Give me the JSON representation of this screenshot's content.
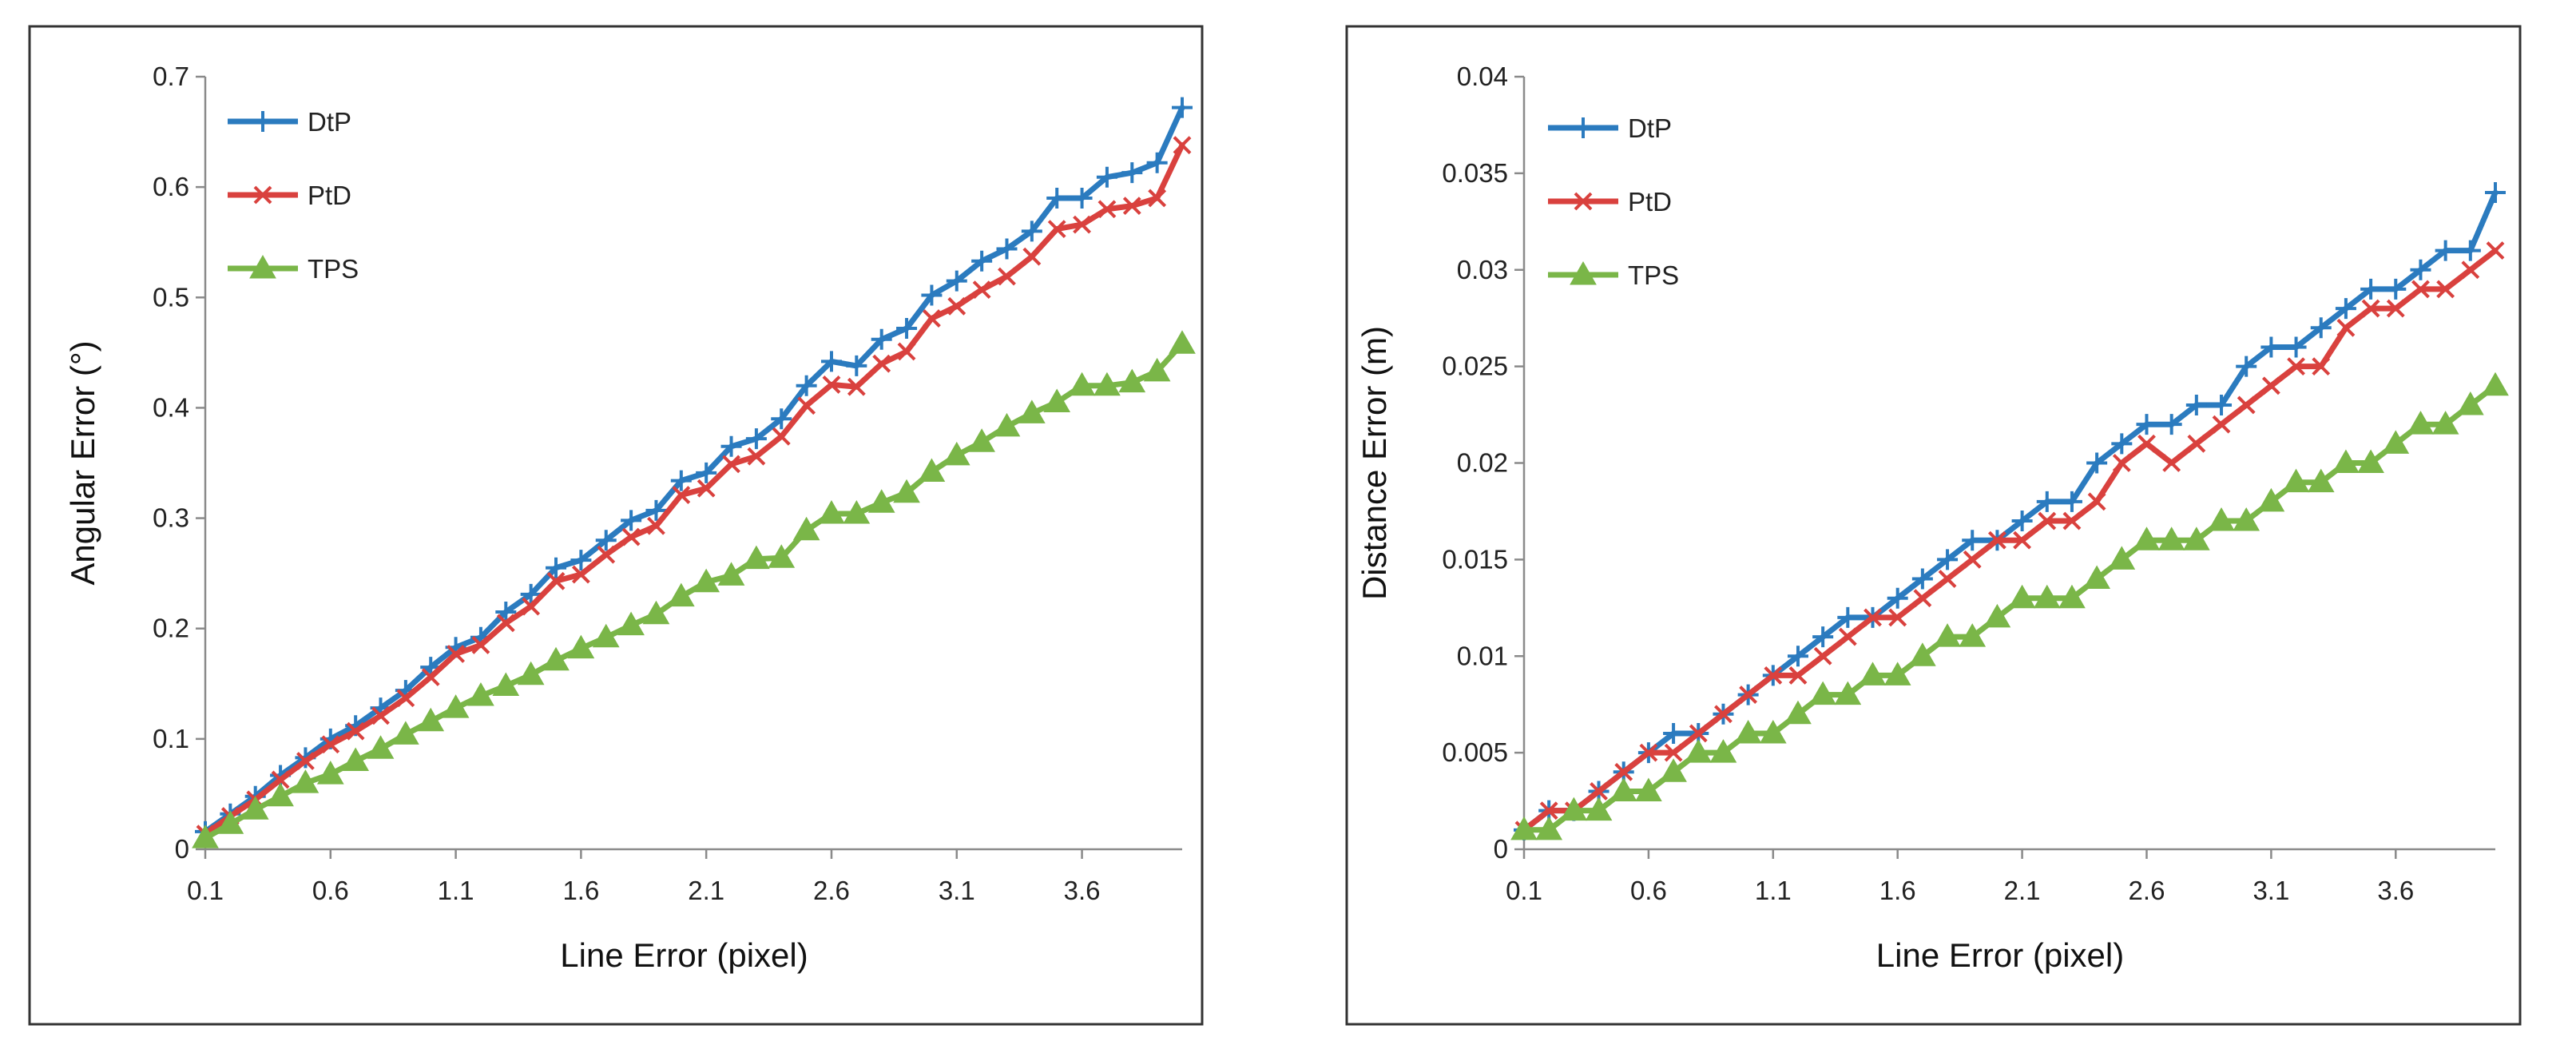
{
  "chart_data": [
    {
      "type": "line",
      "title": "",
      "xlabel": "Line Error (pixel)",
      "ylabel": "Angular Error (°)",
      "xticks": [
        "0.1",
        "0.6",
        "1.1",
        "1.6",
        "2.1",
        "2.6",
        "3.1",
        "3.6"
      ],
      "xlim": [
        0.1,
        4.0
      ],
      "ylim": [
        0,
        0.7
      ],
      "yticks": [
        0,
        0.1,
        0.2,
        0.3,
        0.4,
        0.5,
        0.6,
        0.7
      ],
      "ytick_labels": [
        "0",
        "0.1",
        "0.2",
        "0.3",
        "0.4",
        "0.5",
        "0.6",
        "0.7"
      ],
      "grid": false,
      "legend": "top-left",
      "x": [
        0.1,
        0.2,
        0.3,
        0.4,
        0.5,
        0.6,
        0.7,
        0.8,
        0.9,
        1.0,
        1.1,
        1.2,
        1.3,
        1.4,
        1.5,
        1.6,
        1.7,
        1.8,
        1.9,
        2.0,
        2.1,
        2.2,
        2.3,
        2.4,
        2.5,
        2.6,
        2.7,
        2.8,
        2.9,
        3.0,
        3.1,
        3.2,
        3.3,
        3.4,
        3.5,
        3.6,
        3.7,
        3.8,
        3.9,
        4.0
      ],
      "series": [
        {
          "name": "DtP",
          "color": "#2b7bbf",
          "marker": "plus",
          "values": [
            0.016,
            0.032,
            0.048,
            0.067,
            0.083,
            0.1,
            0.112,
            0.128,
            0.144,
            0.165,
            0.183,
            0.192,
            0.215,
            0.231,
            0.255,
            0.262,
            0.28,
            0.298,
            0.307,
            0.334,
            0.341,
            0.365,
            0.372,
            0.39,
            0.42,
            0.442,
            0.438,
            0.462,
            0.472,
            0.502,
            0.515,
            0.533,
            0.544,
            0.56,
            0.59,
            0.59,
            0.609,
            0.613,
            0.622,
            0.672
          ]
        },
        {
          "name": "PtD",
          "color": "#d9413e",
          "marker": "x",
          "values": [
            0.014,
            0.03,
            0.045,
            0.063,
            0.08,
            0.095,
            0.107,
            0.121,
            0.137,
            0.156,
            0.177,
            0.185,
            0.205,
            0.22,
            0.243,
            0.249,
            0.267,
            0.283,
            0.293,
            0.321,
            0.327,
            0.349,
            0.356,
            0.374,
            0.402,
            0.421,
            0.419,
            0.44,
            0.451,
            0.481,
            0.492,
            0.507,
            0.519,
            0.537,
            0.562,
            0.566,
            0.58,
            0.583,
            0.59,
            0.638
          ]
        },
        {
          "name": "TPS",
          "color": "#7ab648",
          "marker": "triangle",
          "values": [
            0.01,
            0.023,
            0.036,
            0.048,
            0.06,
            0.068,
            0.08,
            0.091,
            0.104,
            0.116,
            0.128,
            0.139,
            0.148,
            0.158,
            0.171,
            0.182,
            0.192,
            0.203,
            0.213,
            0.229,
            0.242,
            0.248,
            0.263,
            0.264,
            0.289,
            0.304,
            0.304,
            0.314,
            0.323,
            0.342,
            0.357,
            0.369,
            0.383,
            0.395,
            0.405,
            0.42,
            0.42,
            0.423,
            0.433,
            0.458
          ]
        }
      ]
    },
    {
      "type": "line",
      "title": "",
      "xlabel": "Line Error (pixel)",
      "ylabel": "Distance Error (m)",
      "xticks": [
        "0.1",
        "0.6",
        "1.1",
        "1.6",
        "2.1",
        "2.6",
        "3.1",
        "3.6"
      ],
      "xlim": [
        0.1,
        4.0
      ],
      "ylim": [
        0,
        0.04
      ],
      "yticks": [
        0,
        0.005,
        0.01,
        0.015,
        0.02,
        0.025,
        0.03,
        0.035,
        0.04
      ],
      "ytick_labels": [
        "0",
        "0.005",
        "0.01",
        "0.015",
        "0.02",
        "0.025",
        "0.03",
        "0.035",
        "0.04"
      ],
      "grid": false,
      "legend": "top-left",
      "x": [
        0.1,
        0.2,
        0.3,
        0.4,
        0.5,
        0.6,
        0.7,
        0.8,
        0.9,
        1.0,
        1.1,
        1.2,
        1.3,
        1.4,
        1.5,
        1.6,
        1.7,
        1.8,
        1.9,
        2.0,
        2.1,
        2.2,
        2.3,
        2.4,
        2.5,
        2.6,
        2.7,
        2.8,
        2.9,
        3.0,
        3.1,
        3.2,
        3.3,
        3.4,
        3.5,
        3.6,
        3.7,
        3.8,
        3.9,
        4.0
      ],
      "series": [
        {
          "name": "DtP",
          "color": "#2b7bbf",
          "marker": "plus",
          "values": [
            0.001,
            0.002,
            0.002,
            0.003,
            0.004,
            0.005,
            0.006,
            0.006,
            0.007,
            0.008,
            0.009,
            0.01,
            0.011,
            0.012,
            0.012,
            0.013,
            0.014,
            0.015,
            0.016,
            0.016,
            0.017,
            0.018,
            0.018,
            0.02,
            0.021,
            0.022,
            0.022,
            0.023,
            0.023,
            0.025,
            0.026,
            0.026,
            0.027,
            0.028,
            0.029,
            0.029,
            0.03,
            0.031,
            0.031,
            0.034
          ]
        },
        {
          "name": "PtD",
          "color": "#d9413e",
          "marker": "x",
          "values": [
            0.001,
            0.002,
            0.002,
            0.003,
            0.004,
            0.005,
            0.005,
            0.006,
            0.007,
            0.008,
            0.009,
            0.009,
            0.01,
            0.011,
            0.012,
            0.012,
            0.013,
            0.014,
            0.015,
            0.016,
            0.016,
            0.017,
            0.017,
            0.018,
            0.02,
            0.021,
            0.02,
            0.021,
            0.022,
            0.023,
            0.024,
            0.025,
            0.025,
            0.027,
            0.028,
            0.028,
            0.029,
            0.029,
            0.03,
            0.031
          ]
        },
        {
          "name": "TPS",
          "color": "#7ab648",
          "marker": "triangle",
          "values": [
            0.001,
            0.001,
            0.002,
            0.002,
            0.003,
            0.003,
            0.004,
            0.005,
            0.005,
            0.006,
            0.006,
            0.007,
            0.008,
            0.008,
            0.009,
            0.009,
            0.01,
            0.011,
            0.011,
            0.012,
            0.013,
            0.013,
            0.013,
            0.014,
            0.015,
            0.016,
            0.016,
            0.016,
            0.017,
            0.017,
            0.018,
            0.019,
            0.019,
            0.02,
            0.02,
            0.021,
            0.022,
            0.022,
            0.023,
            0.024
          ]
        }
      ]
    }
  ]
}
